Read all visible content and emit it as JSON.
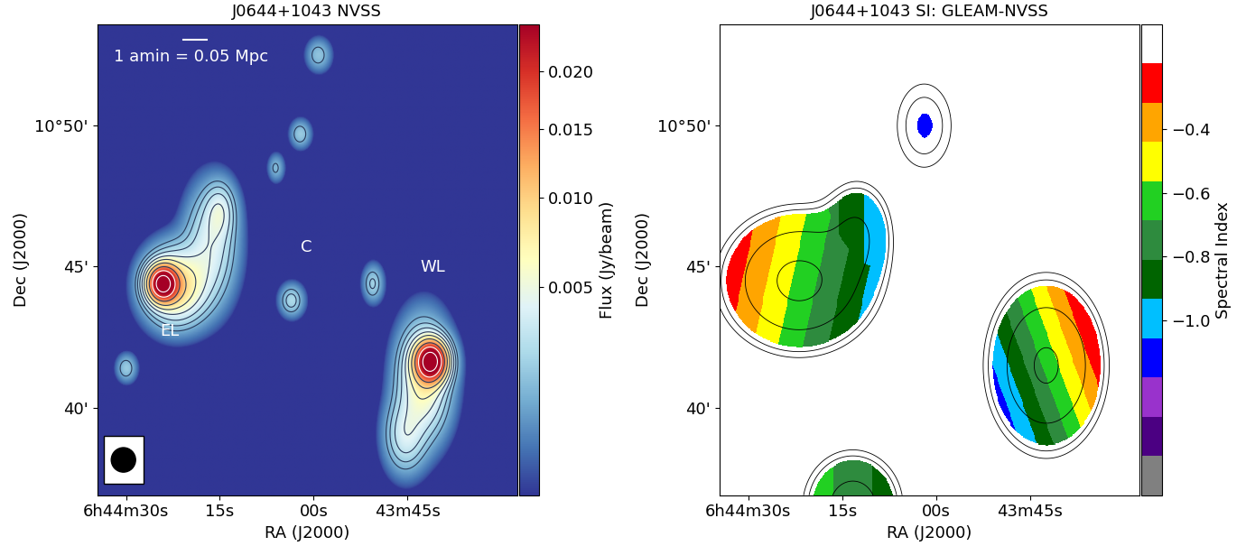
{
  "chart_data": [
    {
      "type": "heatmap",
      "title": "J0644+1043 NVSS",
      "xlabel": "RA (J2000)",
      "ylabel": "Dec (J2000)",
      "xlim": [
        94.6,
        27.5
      ],
      "ylim": [
        36.9,
        53.6
      ],
      "xticks": [
        {
          "value": 90,
          "label": "6h44m30s"
        },
        {
          "value": 75,
          "label": "15s"
        },
        {
          "value": 60,
          "label": "00s"
        },
        {
          "value": 45,
          "label": "43m45s"
        }
      ],
      "yticks": [
        {
          "value": 40,
          "label": "40'"
        },
        {
          "value": 45,
          "label": "45'"
        },
        {
          "value": 50,
          "label": "10°50'"
        }
      ],
      "colorbar_label": "Flux (Jy/beam)",
      "colorbar_range": [
        0.000236,
        0.0247
      ],
      "colorbar_ticks": [
        0.005,
        {
          "value": 0.01,
          "label": "0.010"
        },
        0.015,
        {
          "value": 0.02,
          "label": "0.020"
        }
      ],
      "annotations": [
        "1 amin = 0.05 Mpc",
        "EL",
        "C",
        "WL"
      ],
      "components": [
        {
          "x": 84.2,
          "y": 44.4,
          "peak": 0.028,
          "sx": 1.5,
          "sy": 0.4
        },
        {
          "x": 82.0,
          "y": 44.3,
          "peak": 0.009,
          "sx": 3.0,
          "sy": 0.8
        },
        {
          "x": 76.5,
          "y": 45.8,
          "peak": 0.004,
          "sx": 2.5,
          "sy": 1.2
        },
        {
          "x": 75.0,
          "y": 47.0,
          "peak": 0.003,
          "sx": 1.5,
          "sy": 0.6
        },
        {
          "x": 63.6,
          "y": 43.8,
          "peak": 0.0025,
          "sx": 1.2,
          "sy": 0.35
        },
        {
          "x": 50.6,
          "y": 44.4,
          "peak": 0.0022,
          "sx": 1.0,
          "sy": 0.4
        },
        {
          "x": 41.3,
          "y": 41.65,
          "peak": 0.03,
          "sx": 1.6,
          "sy": 0.45
        },
        {
          "x": 42.5,
          "y": 41.0,
          "peak": 0.007,
          "sx": 2.5,
          "sy": 1.2
        },
        {
          "x": 45.5,
          "y": 39.0,
          "peak": 0.0035,
          "sx": 2.0,
          "sy": 0.8
        },
        {
          "x": 59.3,
          "y": 52.5,
          "peak": 0.0018,
          "sx": 1.2,
          "sy": 0.35
        },
        {
          "x": 62.2,
          "y": 49.7,
          "peak": 0.002,
          "sx": 1.0,
          "sy": 0.3
        },
        {
          "x": 66.1,
          "y": 48.5,
          "peak": 0.0015,
          "sx": 0.8,
          "sy": 0.3
        },
        {
          "x": 90.0,
          "y": 41.4,
          "peak": 0.002,
          "sx": 1.0,
          "sy": 0.3
        }
      ],
      "contour_levels": [
        0.0013,
        0.002,
        0.003,
        0.0045,
        0.0065,
        0.0095,
        0.014,
        0.02,
        0.028
      ]
    },
    {
      "type": "heatmap",
      "title": "J0644+1043 SI: GLEAM-NVSS",
      "xlabel": "RA (J2000)",
      "ylabel": "Dec (J2000)",
      "xlim": [
        94.6,
        27.5
      ],
      "ylim": [
        36.9,
        53.6
      ],
      "xticks": [
        {
          "value": 90,
          "label": "6h44m30s"
        },
        {
          "value": 75,
          "label": "15s"
        },
        {
          "value": 60,
          "label": "00s"
        },
        {
          "value": 45,
          "label": "43m45s"
        }
      ],
      "yticks": [
        {
          "value": 40,
          "label": "40'"
        },
        {
          "value": 45,
          "label": "45'"
        },
        {
          "value": 50,
          "label": "10°50'"
        }
      ],
      "colorbar_label": "Spectral Index",
      "colorbar_range": [
        -1.55,
        -0.07
      ],
      "colorbar_ticks": [
        {
          "value": -0.4,
          "label": "−0.4"
        },
        {
          "value": -0.6,
          "label": "−0.6"
        },
        {
          "value": -0.8,
          "label": "−0.8"
        },
        {
          "value": -1.0,
          "label": "−1.0"
        }
      ],
      "colors": [
        "#808080",
        "#4b0082",
        "#9932cc",
        "#0000ff",
        "#00bfff",
        "#006400",
        "#2e8b3e",
        "#22d022",
        "#ffff00",
        "#ffa500",
        "#ff0000",
        "#ffffff"
      ],
      "si_mask_level": 0.08,
      "components": [
        {
          "x": 81.9,
          "y": 44.5,
          "peak": 0.6,
          "sx": 5.8,
          "sy": 1.17,
          "si": -0.6,
          "si_dx": 0.031,
          "si_dy": 0.03
        },
        {
          "x": 72.6,
          "y": 46.2,
          "peak": 0.2,
          "sx": 3.0,
          "sy": 1.0,
          "si": -0.9,
          "si_dx": 0.03,
          "si_dy": 0.0
        },
        {
          "x": 61.9,
          "y": 50.0,
          "peak": 0.085,
          "sx": 3.5,
          "sy": 1.2,
          "si": -1.1,
          "si_dx": 0.0,
          "si_dy": 0.0
        },
        {
          "x": 42.4,
          "y": 41.5,
          "peak": 0.55,
          "sx": 4.4,
          "sy": 1.44,
          "si": -0.65,
          "si_dx": -0.047,
          "si_dy": 0.076
        },
        {
          "x": 73.3,
          "y": 36.5,
          "peak": 0.3,
          "sx": 4.0,
          "sy": 1.0,
          "si": -0.75,
          "si_dx": 0.02,
          "si_dy": 0.0
        }
      ],
      "contour_levels": [
        0.04,
        0.06,
        0.2,
        0.5
      ]
    }
  ]
}
